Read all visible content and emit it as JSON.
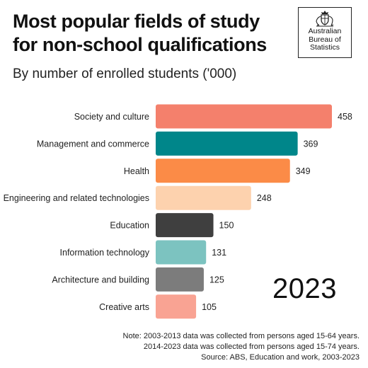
{
  "header": {
    "title_line1": "Most popular fields of study",
    "title_line2": "for non-school qualifications",
    "subtitle": "By number of enrolled students ('000)"
  },
  "logo": {
    "line1": "Australian",
    "line2": "Bureau of",
    "line3": "Statistics",
    "icon": "coat-of-arms-icon"
  },
  "year_label": "2023",
  "notes": {
    "line1": "Note: 2003-2013 data was collected from persons aged 15-64 years.",
    "line2": "2014-2023 data was collected from persons aged 15-74 years.",
    "line3": "Source: ABS, Education and work, 2003-2023"
  },
  "chart_data": {
    "type": "bar",
    "orientation": "horizontal",
    "title": "Most popular fields of study for non-school qualifications",
    "subtitle": "By number of enrolled students ('000)",
    "categories": [
      "Society and culture",
      "Management and commerce",
      "Health",
      "Engineering and related technologies",
      "Education",
      "Information technology",
      "Architecture and building",
      "Creative arts"
    ],
    "values": [
      458,
      369,
      349,
      248,
      150,
      131,
      125,
      105
    ],
    "colors": [
      "#f4806c",
      "#00868a",
      "#fb8b47",
      "#fdd2ae",
      "#3f3f3f",
      "#7cc3c0",
      "#7c7c7c",
      "#f9a393"
    ],
    "value_labels": [
      "458",
      "369",
      "349",
      "248",
      "150",
      "131",
      "125",
      "105"
    ],
    "grid": false,
    "axes_visible": false
  }
}
